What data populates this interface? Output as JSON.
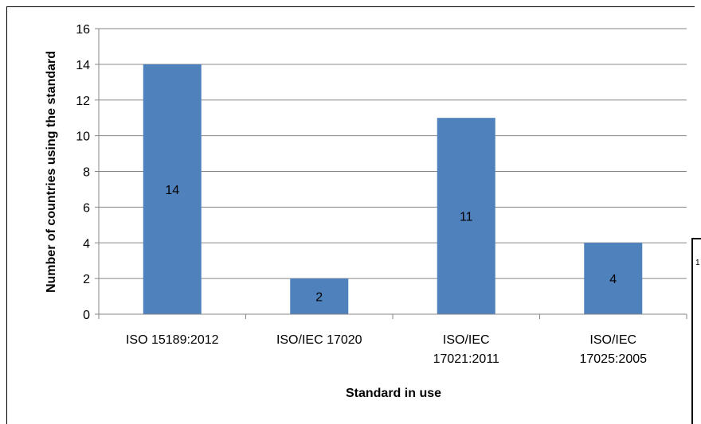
{
  "chart_data": {
    "type": "bar",
    "categories": [
      [
        "ISO 15189:2012"
      ],
      [
        "ISO/IEC 17020"
      ],
      [
        "ISO/IEC",
        "17021:2011"
      ],
      [
        "ISO/IEC",
        "17025:2005"
      ]
    ],
    "values": [
      14,
      2,
      11,
      4
    ],
    "data_labels": [
      "14",
      "2",
      "11",
      "4"
    ],
    "title": "",
    "xlabel": "Standard in use",
    "ylabel": "Number of countries using the standard",
    "ylim": [
      0,
      16
    ],
    "yticks": [
      0,
      2,
      4,
      6,
      8,
      10,
      12,
      14,
      16
    ],
    "grid": true,
    "legend": "none",
    "colors": {
      "bar": "#4f81bd",
      "grid": "#868686",
      "axis": "#868686"
    }
  },
  "background": {
    "partial_text": "1"
  }
}
